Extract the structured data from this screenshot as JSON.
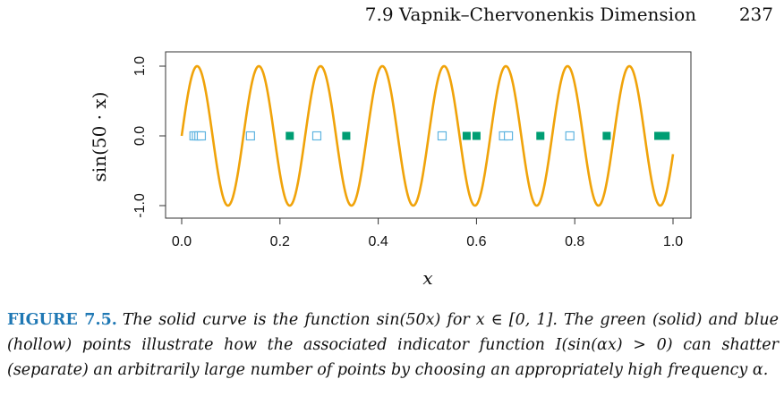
{
  "header": {
    "section": "7.9 Vapnik–Chervonenkis Dimension",
    "page_number": "237"
  },
  "chart_data": {
    "type": "line",
    "function": "sin(50x)",
    "xlabel": "x",
    "ylabel": "sin(50 · x)",
    "xlim": [
      0,
      1
    ],
    "ylim": [
      -1,
      1
    ],
    "x_ticks": [
      "0.0",
      "0.2",
      "0.4",
      "0.6",
      "0.8",
      "1.0"
    ],
    "x_tick_values": [
      0.0,
      0.2,
      0.4,
      0.6,
      0.8,
      1.0
    ],
    "y_ticks": [
      "-1.0",
      "0.0",
      "1.0"
    ],
    "y_tick_values": [
      -1.0,
      0.0,
      1.0
    ],
    "curve_color": "#f0a30a",
    "point_y": 0,
    "blue_points": [
      0.025,
      0.03,
      0.035,
      0.04,
      0.14,
      0.275,
      0.53,
      0.655,
      0.665,
      0.79
    ],
    "green_points": [
      0.22,
      0.335,
      0.58,
      0.6,
      0.73,
      0.865,
      0.97,
      0.985
    ],
    "blue_color": "#5fb4e0",
    "green_color": "#009e73"
  },
  "caption": {
    "label": "FIGURE 7.5.",
    "text": "The solid curve is the function sin(50x) for x ∈ [0, 1]. The green (solid) and blue (hollow) points illustrate how the associated indicator function I(sin(αx) > 0) can shatter (separate) an arbitrarily large number of points by choosing an appropriately high frequency α."
  }
}
